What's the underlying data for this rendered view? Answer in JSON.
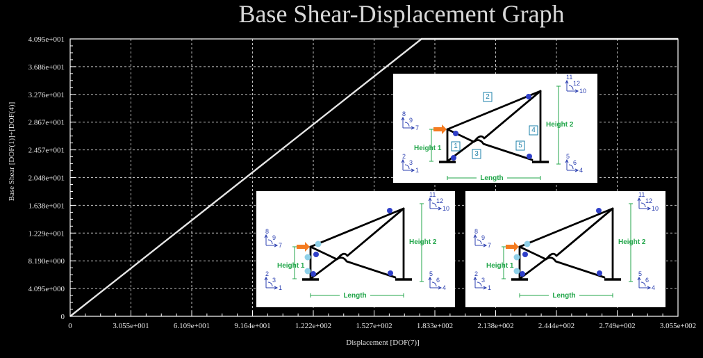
{
  "chart_data": {
    "type": "line",
    "title": "Base Shear-Displacement Graph",
    "xlabel": "Displacement [DOF(7)]",
    "ylabel": "Base Shear [DOF(1)]+[DOF(4)]",
    "xlim": [
      0,
      305.5
    ],
    "ylim": [
      0,
      40.95
    ],
    "x_tick_labels": [
      "0",
      "3.055e+001",
      "6.109e+001",
      "9.164e+001",
      "1.222e+002",
      "1.527e+002",
      "1.833e+002",
      "2.138e+002",
      "2.444e+002",
      "2.749e+002",
      "3.055e+002"
    ],
    "y_tick_labels": [
      "0",
      "4.095e+000",
      "8.190e+000",
      "1.229e+001",
      "1.638e+001",
      "2.048e+001",
      "2.457e+001",
      "2.867e+001",
      "3.276e+001",
      "3.686e+001",
      "4.095e+001"
    ],
    "grid": true,
    "series": [
      {
        "x": [
          0,
          176.6,
          305.5
        ],
        "y": [
          0,
          40.95,
          40.95
        ]
      }
    ]
  },
  "colors": {
    "background": "#000000",
    "line": "#e6e6e6",
    "grid": "#ffffff",
    "dof": "#2b3fb0",
    "hinge": "#2f3fc8",
    "hinge_light": "#8fd0e8",
    "label_green": "#22a64a",
    "arrow": "#f47b20"
  },
  "insets": {
    "member_numbers": [
      "1",
      "2",
      "3",
      "4",
      "5"
    ],
    "dof_labels": [
      "1",
      "2",
      "3",
      "4",
      "5",
      "6",
      "7",
      "8",
      "9",
      "10",
      "11",
      "12"
    ],
    "height1_label": "Height 1",
    "height2_label": "Height 2",
    "length_label": "Length"
  }
}
